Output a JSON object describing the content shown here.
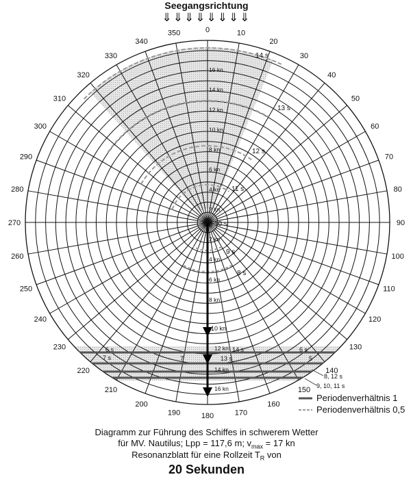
{
  "header": {
    "title": "Seegangsrichtung",
    "arrows": "⇓⇓⇓⇓⇓⇓⇓⇓"
  },
  "angles": [
    "0",
    "10",
    "20",
    "30",
    "40",
    "50",
    "60",
    "70",
    "80",
    "90",
    "100",
    "110",
    "120",
    "130",
    "140",
    "150",
    "160",
    "170",
    "180",
    "190",
    "200",
    "210",
    "220",
    "230",
    "240",
    "250",
    "260",
    "270",
    "280",
    "290",
    "300",
    "310",
    "320",
    "330",
    "340",
    "350"
  ],
  "speed_labels_top": [
    "2 kn",
    "4 kn",
    "6 kn",
    "8 kn",
    "10 kn",
    "12 kn",
    "14 kn",
    "16 kn"
  ],
  "speed_labels_bottom": [
    "2 kn",
    "4 kn",
    "6 kn",
    "8 kn",
    "10 kn",
    "12 kn",
    "14 kn",
    "16 kn"
  ],
  "period_labels": {
    "p10": "10 s",
    "p11": "11 s",
    "p12": "12 s",
    "p13": "13 s",
    "p14": "14 s",
    "p9": "9 s",
    "p8": "8 s",
    "b6l": "6 s",
    "b7l": "7 s",
    "b7m": "7",
    "b14": "14 s",
    "b13": "13 s",
    "b6r": "6 s",
    "b5r": "5",
    "b812": "8, 12 s",
    "b91011": "9, 10, 11 s"
  },
  "legend": {
    "ratio1": "Periodenverhältnis  1",
    "ratio05": "Periodenverhältnis 0,5"
  },
  "caption": {
    "line1": "Diagramm zur Führung des Schiffes in schwerem Wetter",
    "line2_a": "für MV. Nautilus; Lpp = 117,6 m; v",
    "line2_sub": "max",
    "line2_b": " = 17 kn",
    "line3_a": "Resonanzblatt für eine Rollzeit T",
    "line3_sub": "R",
    "line3_b": " von",
    "line4": "20 Sekunden"
  },
  "colors": {
    "grid": "#111111",
    "shade": "#cfcfcf",
    "ratio1": "#555555",
    "ratio05": "#9a9a9a"
  }
}
